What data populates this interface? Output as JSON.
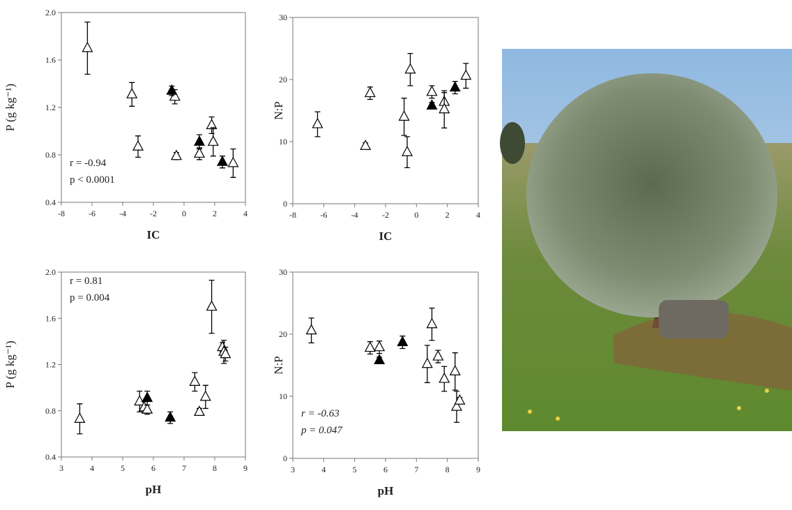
{
  "chart_data": [
    {
      "type": "scatter",
      "xlabel": "IC",
      "ylabel": "P (g kg⁻¹)",
      "xlim": [
        -8,
        4
      ],
      "xticks": [
        -8,
        -6,
        -4,
        -2,
        0,
        2,
        4
      ],
      "ylim": [
        0.4,
        2.0
      ],
      "yticks": [
        0.4,
        0.8,
        1.2,
        1.6,
        {
          "value": 2.0,
          "label": "2.0"
        }
      ],
      "annotations": [
        "r = -0.94",
        "p < 0.0001"
      ],
      "series": [
        {
          "filled": false,
          "color": "#000000",
          "x": [
            -6.3,
            -3.4,
            -3.0,
            -0.6,
            -0.5,
            1.0,
            1.8,
            1.9,
            3.2
          ],
          "values": [
            1.7,
            1.31,
            0.87,
            1.29,
            0.79,
            0.81,
            1.05,
            0.91,
            0.73
          ],
          "errors": [
            0.22,
            0.1,
            0.09,
            0.06,
            0.03,
            0.05,
            0.07,
            0.12,
            0.12
          ]
        },
        {
          "filled": true,
          "color": "#000000",
          "x": [
            -0.8,
            1.0,
            2.5
          ],
          "values": [
            1.34,
            0.91,
            0.74
          ],
          "errors": [
            0.04,
            0.06,
            0.05
          ]
        }
      ]
    },
    {
      "type": "scatter",
      "xlabel": "IC",
      "ylabel": "N:P",
      "xlim": [
        -8,
        4
      ],
      "xticks": [
        -8,
        -6,
        -4,
        -2,
        0,
        2,
        4
      ],
      "ylim": [
        0,
        30
      ],
      "yticks": [
        0,
        10,
        20,
        30
      ],
      "annotations": [],
      "series": [
        {
          "filled": false,
          "color": "#000000",
          "x": [
            -6.4,
            -3.3,
            -3.0,
            -0.8,
            -0.6,
            -0.4,
            1.0,
            1.8,
            1.8,
            3.2
          ],
          "values": [
            12.8,
            9.3,
            17.8,
            14.0,
            8.3,
            21.6,
            18.0,
            16.4,
            15.2,
            20.6
          ],
          "errors": [
            2.0,
            0.5,
            1.0,
            3.0,
            2.5,
            2.6,
            1.0,
            1.5,
            3.0,
            2.0
          ]
        },
        {
          "filled": true,
          "color": "#000000",
          "x": [
            1.0,
            2.5
          ],
          "values": [
            15.8,
            18.7
          ],
          "errors": [
            0.5,
            1.0
          ]
        }
      ]
    },
    {
      "type": "scatter",
      "xlabel": "pH",
      "ylabel": "P (g kg⁻¹)",
      "xlim": [
        3,
        9
      ],
      "xticks": [
        3,
        4,
        5,
        6,
        7,
        8,
        9
      ],
      "ylim": [
        0.4,
        2.0
      ],
      "yticks": [
        0.4,
        0.8,
        1.2,
        1.6,
        {
          "value": 2.0,
          "label": "2.0"
        }
      ],
      "annotations": [
        "r = 0.81",
        "p = 0.004"
      ],
      "series": [
        {
          "filled": false,
          "color": "#000000",
          "x": [
            3.6,
            5.55,
            5.7,
            5.8,
            7.35,
            7.5,
            7.7,
            7.9,
            8.25,
            8.3,
            8.35
          ],
          "values": [
            0.73,
            0.88,
            0.83,
            0.81,
            1.05,
            0.79,
            0.92,
            1.7,
            1.35,
            1.31,
            1.29
          ],
          "errors": [
            0.13,
            0.09,
            0.05,
            0.04,
            0.08,
            0.03,
            0.1,
            0.23,
            0.04,
            0.1,
            0.06
          ]
        },
        {
          "filled": true,
          "color": "#000000",
          "x": [
            5.8,
            6.55
          ],
          "values": [
            0.91,
            0.74
          ],
          "errors": [
            0.06,
            0.05
          ]
        }
      ]
    },
    {
      "type": "scatter",
      "xlabel": "pH",
      "ylabel": "N:P",
      "xlim": [
        3,
        9
      ],
      "xticks": [
        3,
        4,
        5,
        6,
        7,
        8,
        9
      ],
      "ylim": [
        0,
        30
      ],
      "yticks": [
        0,
        10,
        20,
        30
      ],
      "annotations": [
        "r = -0.63",
        "p = 0.047"
      ],
      "series": [
        {
          "filled": false,
          "color": "#000000",
          "x": [
            3.6,
            5.5,
            5.8,
            7.35,
            7.5,
            7.7,
            7.9,
            8.25,
            8.3,
            8.4
          ],
          "values": [
            20.6,
            17.8,
            17.9,
            15.2,
            21.6,
            16.4,
            12.8,
            14.0,
            8.3,
            9.3
          ],
          "errors": [
            2.0,
            1.0,
            1.0,
            3.0,
            2.6,
            1.0,
            2.0,
            3.0,
            2.5,
            0.5
          ]
        },
        {
          "filled": true,
          "color": "#000000",
          "x": [
            5.8,
            6.55
          ],
          "values": [
            15.8,
            18.7
          ],
          "errors": [
            0.5,
            1.0
          ]
        }
      ]
    }
  ]
}
